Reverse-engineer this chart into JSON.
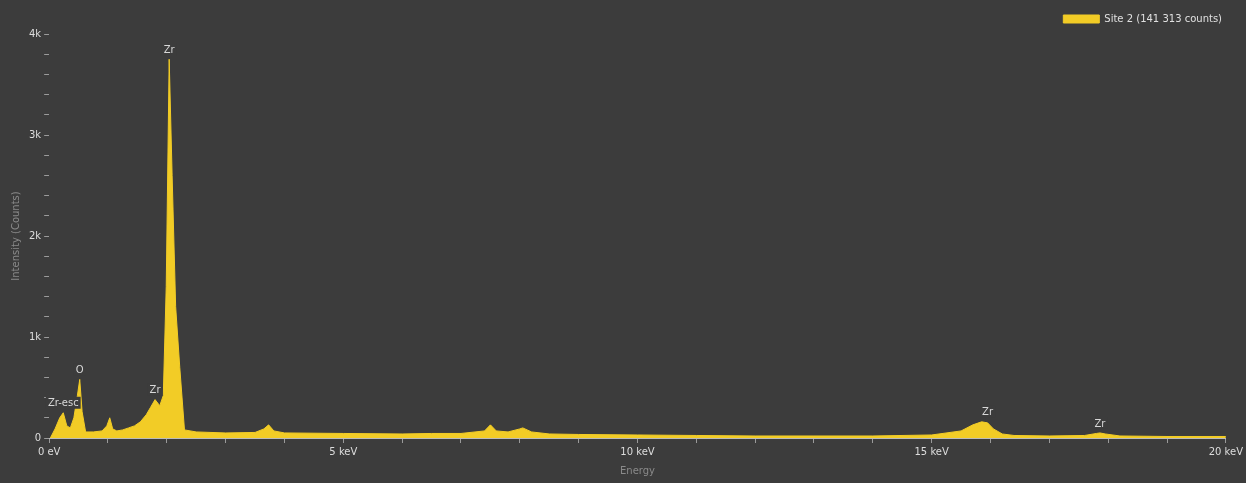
{
  "chart_data": {
    "type": "area",
    "xlabel": "Energy",
    "ylabel": "Intensity (Counts)",
    "legend": "top right",
    "grid": false,
    "marker": "none",
    "xlim": [
      0,
      20
    ],
    "ylim": [
      0,
      4000
    ],
    "xticks": [
      {
        "value": 0,
        "label": "0 eV"
      },
      {
        "value": 1,
        "label": null
      },
      {
        "value": 2,
        "label": null
      },
      {
        "value": 3,
        "label": null
      },
      {
        "value": 4,
        "label": null
      },
      {
        "value": 5,
        "label": "5 keV"
      },
      {
        "value": 6,
        "label": null
      },
      {
        "value": 7,
        "label": null
      },
      {
        "value": 8,
        "label": null
      },
      {
        "value": 9,
        "label": null
      },
      {
        "value": 10,
        "label": "10 keV"
      },
      {
        "value": 11,
        "label": null
      },
      {
        "value": 12,
        "label": null
      },
      {
        "value": 13,
        "label": null
      },
      {
        "value": 14,
        "label": null
      },
      {
        "value": 15,
        "label": "15 keV"
      },
      {
        "value": 16,
        "label": null
      },
      {
        "value": 17,
        "label": null
      },
      {
        "value": 18,
        "label": null
      },
      {
        "value": 19,
        "label": null
      },
      {
        "value": 20,
        "label": "20 keV"
      }
    ],
    "yticks": [
      {
        "value": 0,
        "label": "0"
      },
      {
        "value": 200,
        "label": null
      },
      {
        "value": 400,
        "label": null
      },
      {
        "value": 600,
        "label": null
      },
      {
        "value": 800,
        "label": null
      },
      {
        "value": 1000,
        "label": "1k"
      },
      {
        "value": 1200,
        "label": null
      },
      {
        "value": 1400,
        "label": null
      },
      {
        "value": 1600,
        "label": null
      },
      {
        "value": 1800,
        "label": null
      },
      {
        "value": 2000,
        "label": "2k"
      },
      {
        "value": 2200,
        "label": null
      },
      {
        "value": 2400,
        "label": null
      },
      {
        "value": 2600,
        "label": null
      },
      {
        "value": 2800,
        "label": null
      },
      {
        "value": 3000,
        "label": "3k"
      },
      {
        "value": 3200,
        "label": null
      },
      {
        "value": 3400,
        "label": null
      },
      {
        "value": 3600,
        "label": null
      },
      {
        "value": 3800,
        "label": null
      },
      {
        "value": 4000,
        "label": "4k"
      }
    ],
    "series": [
      {
        "name": "Site 2 (141 313 counts)",
        "color": "#f2cc26",
        "x": [
          0.02,
          0.1,
          0.18,
          0.24,
          0.3,
          0.36,
          0.42,
          0.48,
          0.52,
          0.56,
          0.62,
          0.75,
          0.9,
          0.98,
          1.03,
          1.08,
          1.15,
          1.25,
          1.35,
          1.45,
          1.55,
          1.65,
          1.72,
          1.8,
          1.88,
          1.94,
          1.99,
          2.04,
          2.09,
          2.15,
          2.22,
          2.3,
          2.5,
          3.0,
          3.5,
          3.65,
          3.73,
          3.82,
          4.0,
          5.0,
          6.0,
          6.5,
          7.0,
          7.4,
          7.5,
          7.6,
          7.8,
          8.0,
          8.05,
          8.2,
          8.5,
          9.0,
          10.0,
          11.0,
          12.0,
          13.0,
          14.0,
          15.0,
          15.5,
          15.7,
          15.85,
          15.95,
          16.05,
          16.2,
          16.4,
          17.0,
          17.6,
          17.8,
          17.86,
          17.95,
          18.2,
          19.0,
          20.0
        ],
        "values": [
          0,
          90,
          200,
          250,
          120,
          100,
          200,
          420,
          580,
          260,
          60,
          60,
          70,
          120,
          200,
          90,
          70,
          80,
          100,
          120,
          160,
          230,
          300,
          380,
          320,
          420,
          1500,
          3750,
          2600,
          1300,
          700,
          80,
          60,
          50,
          55,
          90,
          130,
          70,
          50,
          45,
          40,
          45,
          45,
          70,
          130,
          70,
          60,
          90,
          100,
          60,
          40,
          35,
          30,
          25,
          20,
          20,
          20,
          30,
          70,
          130,
          160,
          150,
          90,
          40,
          25,
          20,
          25,
          45,
          50,
          40,
          20,
          15,
          15
        ]
      }
    ],
    "annotations": [
      {
        "text": "Zr-esc",
        "x": 0.24,
        "y": 250
      },
      {
        "text": "O",
        "x": 0.52,
        "y": 580
      },
      {
        "text": "Zr",
        "x": 1.8,
        "y": 380
      },
      {
        "text": "Zr",
        "x": 2.04,
        "y": 3750
      },
      {
        "text": "Zr",
        "x": 15.95,
        "y": 160
      },
      {
        "text": "Zr",
        "x": 17.86,
        "y": 50
      }
    ]
  }
}
